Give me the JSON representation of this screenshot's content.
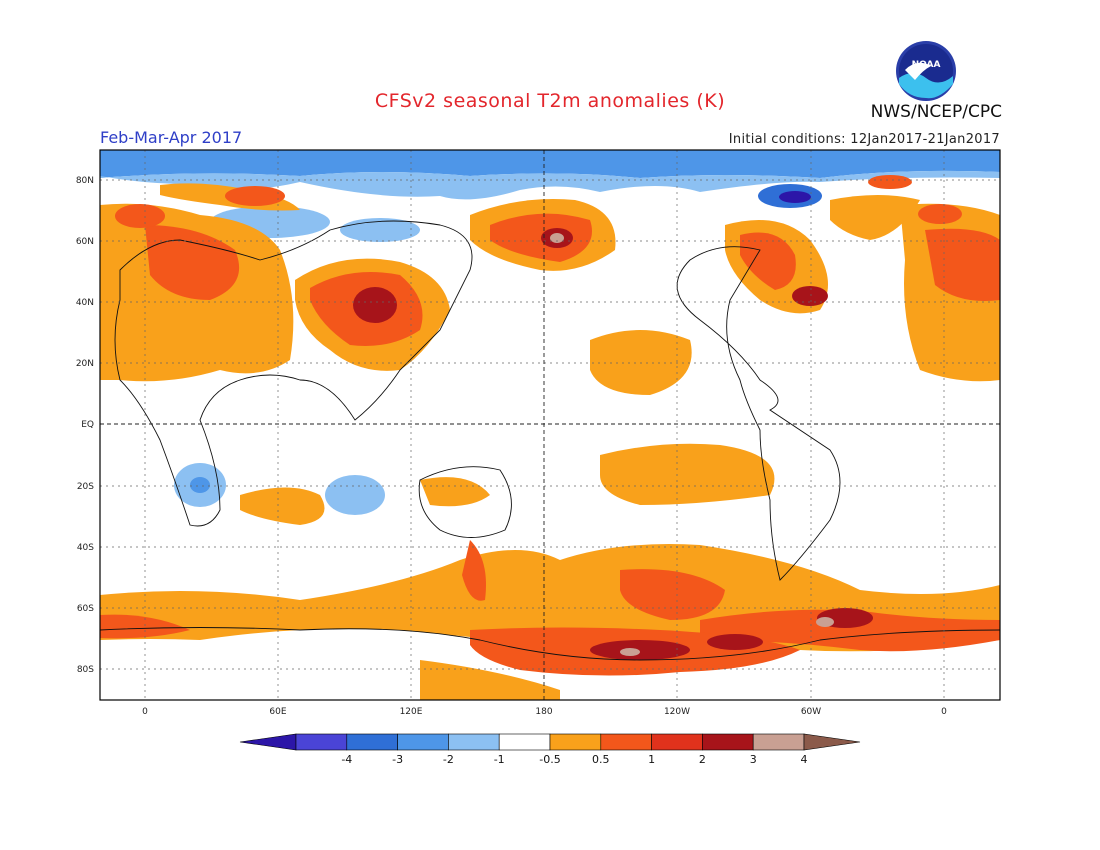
{
  "title": "CFSv2 seasonal T2m anomalies (K)",
  "season": "Feb-Mar-Apr 2017",
  "initial_conditions": "Initial conditions: 12Jan2017-21Jan2017",
  "agency": "NWS/NCEP/CPC",
  "logo_text": "NOAA",
  "map": {
    "projection": "cylindrical equidistant, 0-centered wrap",
    "lat_labels": [
      "80N",
      "60N",
      "40N",
      "20N",
      "EQ",
      "20S",
      "40S",
      "60S",
      "80S"
    ],
    "lon_labels": [
      "0",
      "60E",
      "120E",
      "180",
      "120W",
      "60W",
      "0"
    ],
    "grid": "dotted lines every 20 degrees latitude / 60 degrees longitude",
    "colors": {
      "neg4": "#2c16a8",
      "neg3": "#4a44d6",
      "neg2": "#2f6fd6",
      "neg1": "#4e96e8",
      "neg05": "#8cc0f2",
      "neutral": "#ffffff",
      "pos05": "#f9a11b",
      "pos1": "#f3571b",
      "pos2": "#e0321c",
      "pos3": "#a7141a",
      "pos4": "#c9a093",
      "pos5": "#8b5a4a"
    }
  },
  "colorbar": {
    "labels": [
      "-4",
      "-3",
      "-2",
      "-1",
      "-0.5",
      "0.5",
      "1",
      "2",
      "3",
      "4"
    ],
    "bins": [
      "#2c16a8",
      "#4a44d6",
      "#2f6fd6",
      "#4e96e8",
      "#8cc0f2",
      "#ffffff",
      "#f9a11b",
      "#f3571b",
      "#e0321c",
      "#a7141a",
      "#c9a093",
      "#8b5a4a"
    ]
  }
}
